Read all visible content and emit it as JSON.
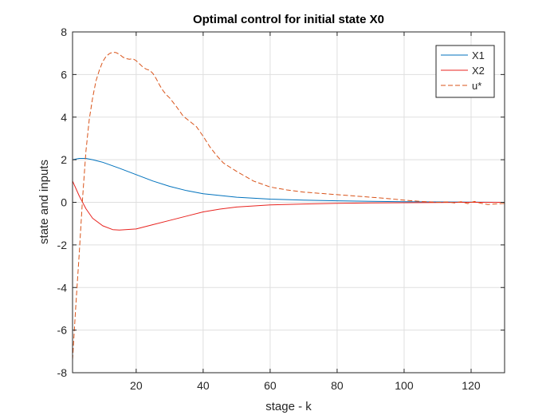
{
  "chart_data": {
    "type": "line",
    "title": "Optimal control for initial state X0",
    "xlabel": "stage - k",
    "ylabel": "state and inputs",
    "xlim": [
      1,
      130
    ],
    "ylim": [
      -8,
      8
    ],
    "xticks": [
      20,
      40,
      60,
      80,
      100,
      120
    ],
    "yticks": [
      -8,
      -6,
      -4,
      -2,
      0,
      2,
      4,
      6,
      8
    ],
    "xtick_labels": [
      "20",
      "40",
      "60",
      "80",
      "100",
      "120"
    ],
    "ytick_labels": [
      "-8",
      "-6",
      "-4",
      "-2",
      "0",
      "2",
      "4",
      "6",
      "8"
    ],
    "grid": true,
    "legend_position": "top-right",
    "series": [
      {
        "name": "X1",
        "color": "#0072BD",
        "dash": "solid",
        "x": [
          1,
          3,
          5,
          7,
          10,
          15,
          20,
          25,
          30,
          35,
          40,
          50,
          60,
          70,
          80,
          90,
          100,
          110,
          120,
          130
        ],
        "y": [
          2.0,
          2.06,
          2.06,
          2.0,
          1.88,
          1.6,
          1.3,
          1.0,
          0.75,
          0.55,
          0.4,
          0.24,
          0.15,
          0.1,
          0.07,
          0.05,
          0.03,
          0.02,
          0.01,
          0.0
        ]
      },
      {
        "name": "X2",
        "color": "#E8231F",
        "dash": "solid",
        "x": [
          1,
          3,
          5,
          7,
          10,
          13,
          15,
          20,
          25,
          30,
          35,
          40,
          45,
          50,
          60,
          70,
          80,
          90,
          100,
          110,
          120,
          130
        ],
        "y": [
          1.0,
          0.3,
          -0.3,
          -0.75,
          -1.1,
          -1.28,
          -1.3,
          -1.25,
          -1.05,
          -0.85,
          -0.65,
          -0.45,
          -0.32,
          -0.22,
          -0.12,
          -0.08,
          -0.05,
          -0.03,
          -0.02,
          -0.01,
          0.0,
          0.0
        ]
      },
      {
        "name": "u*",
        "color": "#D95319",
        "dash": "dashed",
        "x": [
          1,
          2,
          3,
          4,
          5,
          6,
          7,
          8,
          9,
          10,
          11,
          12,
          13,
          14,
          15,
          16,
          17,
          18,
          19,
          20,
          21,
          22,
          23,
          24,
          25,
          26,
          27,
          28,
          29,
          30,
          32,
          34,
          36,
          38,
          40,
          42,
          44,
          46,
          48,
          50,
          55,
          60,
          65,
          70,
          75,
          80,
          85,
          90,
          95,
          100,
          105,
          110,
          113,
          115,
          117,
          119,
          121,
          123,
          125,
          127,
          130
        ],
        "y": [
          -7.4,
          -4.8,
          -2.4,
          0.2,
          2.4,
          3.9,
          4.9,
          5.7,
          6.2,
          6.6,
          6.85,
          6.98,
          7.05,
          7.03,
          6.95,
          6.82,
          6.75,
          6.72,
          6.74,
          6.65,
          6.5,
          6.35,
          6.25,
          6.2,
          6.05,
          5.8,
          5.5,
          5.25,
          5.05,
          4.9,
          4.5,
          4.05,
          3.8,
          3.55,
          3.1,
          2.6,
          2.2,
          1.85,
          1.65,
          1.45,
          1.0,
          0.72,
          0.58,
          0.48,
          0.42,
          0.36,
          0.3,
          0.24,
          0.18,
          0.1,
          0.04,
          0.0,
          0.02,
          -0.03,
          0.03,
          -0.06,
          0.04,
          -0.05,
          -0.1,
          -0.08,
          -0.05
        ]
      }
    ]
  }
}
